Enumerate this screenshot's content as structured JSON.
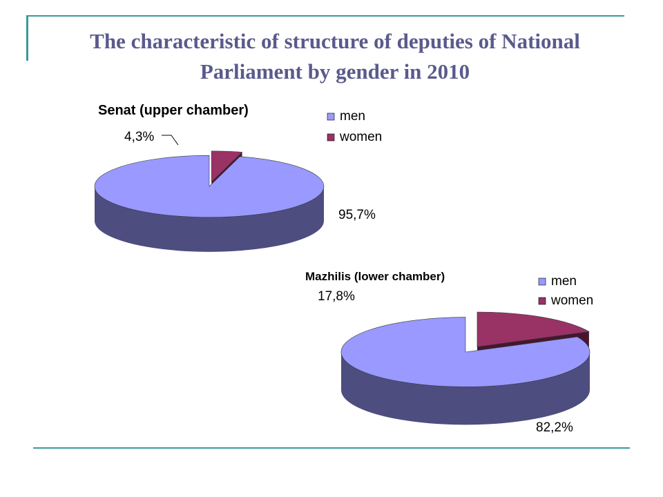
{
  "slide": {
    "title": "The characteristic of structure of deputies of National Parliament by gender in 2010",
    "accent_color": "#3a9a9a",
    "title_color": "#5a5a8c"
  },
  "chart_data": [
    {
      "type": "pie",
      "title": "Senat (upper chamber)",
      "categories": [
        "men",
        "women"
      ],
      "values": [
        95.7,
        4.3
      ],
      "data_labels": [
        "95,7%",
        "4,3%"
      ],
      "colors": [
        "#9999ff",
        "#993366"
      ],
      "legend": "right"
    },
    {
      "type": "pie",
      "title": "Mazhilis (lower chamber)",
      "categories": [
        "men",
        "women"
      ],
      "values": [
        82.2,
        17.8
      ],
      "data_labels": [
        "82,2%",
        "17,8%"
      ],
      "colors": [
        "#9999ff",
        "#993366"
      ],
      "legend": "right"
    }
  ]
}
